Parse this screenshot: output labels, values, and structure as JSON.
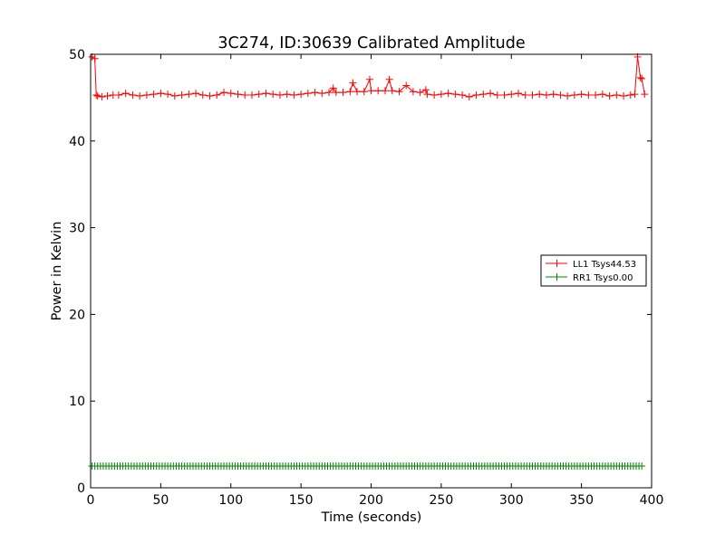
{
  "chart_data": {
    "type": "line",
    "title": "3C274, ID:30639 Calibrated Amplitude",
    "xlabel": "Time (seconds)",
    "ylabel": "Power in Kelvin",
    "xlim": [
      0,
      400
    ],
    "ylim": [
      0,
      50
    ],
    "xticks": [
      0,
      50,
      100,
      150,
      200,
      250,
      300,
      350,
      400
    ],
    "yticks": [
      0,
      10,
      20,
      30,
      40,
      50
    ],
    "grid": false,
    "legend_position": "center-right",
    "series": [
      {
        "name": "LL1 Tsys44.53",
        "color": "#ff0000",
        "marker": "plus",
        "x": [
          1,
          3,
          4,
          5,
          8,
          12,
          16,
          20,
          25,
          30,
          35,
          40,
          45,
          50,
          55,
          60,
          65,
          70,
          75,
          80,
          85,
          90,
          95,
          100,
          105,
          110,
          115,
          120,
          125,
          130,
          135,
          140,
          145,
          150,
          155,
          160,
          165,
          170,
          173,
          175,
          180,
          185,
          187,
          190,
          195,
          199,
          200,
          205,
          210,
          213,
          215,
          220,
          225,
          230,
          235,
          239,
          240,
          245,
          250,
          255,
          260,
          265,
          270,
          275,
          280,
          285,
          290,
          295,
          300,
          305,
          310,
          315,
          320,
          325,
          330,
          335,
          340,
          345,
          350,
          355,
          360,
          365,
          370,
          375,
          380,
          385,
          388,
          390,
          392,
          393,
          395
        ],
        "y": [
          49.7,
          49.5,
          45.3,
          45.2,
          45.1,
          45.2,
          45.3,
          45.3,
          45.5,
          45.3,
          45.2,
          45.3,
          45.4,
          45.5,
          45.4,
          45.2,
          45.3,
          45.4,
          45.5,
          45.3,
          45.2,
          45.3,
          45.6,
          45.5,
          45.4,
          45.3,
          45.3,
          45.4,
          45.5,
          45.4,
          45.3,
          45.4,
          45.3,
          45.4,
          45.5,
          45.6,
          45.5,
          45.6,
          46.1,
          45.6,
          45.6,
          45.7,
          46.7,
          45.7,
          45.7,
          47.1,
          45.8,
          45.8,
          45.8,
          47.1,
          45.8,
          45.7,
          46.4,
          45.7,
          45.6,
          45.9,
          45.4,
          45.3,
          45.4,
          45.5,
          45.4,
          45.3,
          45.1,
          45.3,
          45.4,
          45.5,
          45.3,
          45.3,
          45.4,
          45.5,
          45.3,
          45.3,
          45.4,
          45.3,
          45.4,
          45.3,
          45.2,
          45.3,
          45.4,
          45.3,
          45.3,
          45.4,
          45.2,
          45.3,
          45.2,
          45.3,
          45.4,
          49.7,
          47.3,
          47.2,
          45.4
        ]
      },
      {
        "name": "RR1 Tsys0.00",
        "color": "#008000",
        "marker": "plus",
        "x": [
          1,
          393
        ],
        "y": [
          2.5,
          2.5
        ],
        "dense_markers": true
      }
    ]
  }
}
